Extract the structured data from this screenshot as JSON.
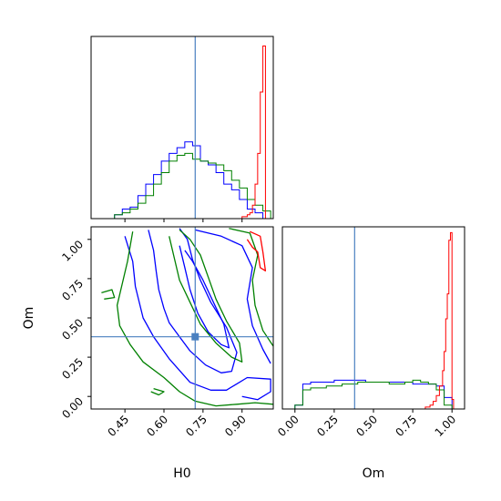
{
  "chart_data": {
    "type": "corner",
    "parameters": [
      "H0",
      "Om"
    ],
    "axis_ranges": {
      "H0": [
        0.32,
        1.02
      ],
      "Om": [
        -0.08,
        1.08
      ]
    },
    "ticks": {
      "H0": [
        0.45,
        0.6,
        0.75,
        0.9
      ],
      "H0_labels": [
        "0.45",
        "0.60",
        "0.75",
        "0.90"
      ],
      "Om": [
        0.0,
        0.25,
        0.5,
        0.75,
        1.0
      ],
      "Om_labels": [
        "0.00",
        "0.25",
        "0.50",
        "0.75",
        "1.00"
      ]
    },
    "xlabels": [
      "H0",
      "Om"
    ],
    "ylabel": "Om",
    "truth": {
      "H0": 0.72,
      "Om": 0.38
    },
    "colors": {
      "blue": "#0000ff",
      "green": "#008000",
      "red": "#ff0000",
      "truth": "#4a80c0",
      "frame": "#000000"
    },
    "hist_H0": {
      "bins": [
        0.32,
        0.35,
        0.38,
        0.41,
        0.44,
        0.47,
        0.5,
        0.53,
        0.56,
        0.59,
        0.62,
        0.65,
        0.68,
        0.71,
        0.74,
        0.77,
        0.8,
        0.83,
        0.86,
        0.89,
        0.92,
        0.95,
        0.98,
        1.01
      ],
      "series": [
        {
          "color": "blue",
          "values": [
            0.0,
            0.0,
            0.0,
            0.02,
            0.05,
            0.06,
            0.12,
            0.18,
            0.23,
            0.3,
            0.34,
            0.37,
            0.4,
            0.38,
            0.3,
            0.28,
            0.24,
            0.18,
            0.15,
            0.1,
            0.05,
            0.03,
            0.0
          ]
        },
        {
          "color": "green",
          "values": [
            0.0,
            0.0,
            0.0,
            0.02,
            0.03,
            0.05,
            0.08,
            0.12,
            0.18,
            0.24,
            0.3,
            0.33,
            0.34,
            0.31,
            0.3,
            0.29,
            0.28,
            0.25,
            0.2,
            0.16,
            0.1,
            0.07,
            0.04
          ]
        }
      ],
      "red": {
        "bins": [
          0.88,
          0.89,
          0.9,
          0.91,
          0.92,
          0.93,
          0.94,
          0.95,
          0.96,
          0.97,
          0.98,
          0.99,
          1.0
        ],
        "values": [
          0.0,
          0.0,
          0.01,
          0.01,
          0.02,
          0.03,
          0.07,
          0.18,
          0.34,
          0.66,
          0.9,
          0.0
        ]
      }
    },
    "hist_Om": {
      "bins": [
        0.0,
        0.05,
        0.1,
        0.15,
        0.2,
        0.25,
        0.3,
        0.35,
        0.4,
        0.45,
        0.5,
        0.55,
        0.6,
        0.65,
        0.7,
        0.75,
        0.8,
        0.85,
        0.9,
        0.95,
        1.0
      ],
      "series": [
        {
          "color": "blue",
          "values": [
            0.02,
            0.13,
            0.14,
            0.14,
            0.14,
            0.15,
            0.15,
            0.15,
            0.15,
            0.14,
            0.14,
            0.14,
            0.14,
            0.14,
            0.14,
            0.13,
            0.13,
            0.13,
            0.12,
            0.06
          ]
        },
        {
          "color": "green",
          "values": [
            0.02,
            0.1,
            0.11,
            0.11,
            0.12,
            0.12,
            0.13,
            0.13,
            0.14,
            0.14,
            0.14,
            0.14,
            0.13,
            0.13,
            0.14,
            0.15,
            0.14,
            0.13,
            0.1,
            0.02
          ]
        }
      ],
      "red": {
        "bins": [
          0.8,
          0.83,
          0.86,
          0.88,
          0.9,
          0.92,
          0.94,
          0.95,
          0.96,
          0.97,
          0.98,
          0.99,
          1.0,
          1.01,
          1.03
        ],
        "values": [
          0.0,
          0.01,
          0.02,
          0.04,
          0.07,
          0.12,
          0.2,
          0.3,
          0.47,
          0.6,
          0.88,
          0.92,
          0.05,
          0.0
        ]
      }
    },
    "contours": [
      {
        "color": "blue",
        "points": [
          [
            0.54,
            1.06
          ],
          [
            0.56,
            0.93
          ],
          [
            0.57,
            0.8
          ],
          [
            0.58,
            0.68
          ],
          [
            0.6,
            0.56
          ],
          [
            0.62,
            0.47
          ],
          [
            0.66,
            0.38
          ],
          [
            0.7,
            0.29
          ],
          [
            0.76,
            0.2
          ],
          [
            0.82,
            0.15
          ],
          [
            0.86,
            0.16
          ],
          [
            0.88,
            0.28
          ],
          [
            0.84,
            0.44
          ],
          [
            0.78,
            0.6
          ],
          [
            0.74,
            0.74
          ],
          [
            0.71,
            0.87
          ],
          [
            0.69,
            1.0
          ],
          [
            0.66,
            1.07
          ]
        ]
      },
      {
        "color": "blue",
        "points": [
          [
            0.66,
            0.96
          ],
          [
            0.68,
            0.82
          ],
          [
            0.7,
            0.68
          ],
          [
            0.73,
            0.53
          ],
          [
            0.77,
            0.41
          ],
          [
            0.82,
            0.33
          ],
          [
            0.85,
            0.31
          ],
          [
            0.83,
            0.46
          ],
          [
            0.79,
            0.6
          ],
          [
            0.75,
            0.74
          ],
          [
            0.71,
            0.86
          ],
          [
            0.68,
            0.93
          ]
        ]
      },
      {
        "color": "blue",
        "points": [
          [
            0.45,
            1.02
          ],
          [
            0.48,
            0.86
          ],
          [
            0.49,
            0.7
          ],
          [
            0.52,
            0.5
          ],
          [
            0.56,
            0.38
          ],
          [
            0.62,
            0.24
          ],
          [
            0.7,
            0.09
          ],
          [
            0.78,
            0.04
          ],
          [
            0.84,
            0.04
          ],
          [
            0.88,
            0.08
          ],
          [
            0.92,
            0.12
          ],
          [
            1.01,
            0.11
          ],
          [
            1.01,
            0.03
          ],
          [
            0.96,
            -0.02
          ],
          [
            0.9,
            0.0
          ]
        ]
      },
      {
        "color": "blue",
        "points": [
          [
            0.72,
            1.06
          ],
          [
            0.82,
            1.02
          ],
          [
            0.9,
            0.96
          ],
          [
            0.94,
            0.82
          ],
          [
            0.92,
            0.62
          ],
          [
            0.94,
            0.45
          ],
          [
            0.98,
            0.3
          ],
          [
            1.01,
            0.21
          ]
        ]
      },
      {
        "color": "green",
        "points": [
          [
            0.48,
            1.05
          ],
          [
            0.46,
            0.86
          ],
          [
            0.44,
            0.72
          ],
          [
            0.42,
            0.58
          ],
          [
            0.43,
            0.45
          ],
          [
            0.47,
            0.33
          ],
          [
            0.52,
            0.22
          ],
          [
            0.6,
            0.12
          ],
          [
            0.66,
            0.03
          ],
          [
            0.72,
            -0.03
          ],
          [
            0.8,
            -0.06
          ],
          [
            0.88,
            -0.05
          ],
          [
            0.95,
            -0.04
          ],
          [
            1.02,
            -0.05
          ]
        ]
      },
      {
        "color": "green",
        "points": [
          [
            0.62,
            1.02
          ],
          [
            0.64,
            0.88
          ],
          [
            0.66,
            0.74
          ],
          [
            0.7,
            0.6
          ],
          [
            0.74,
            0.46
          ],
          [
            0.8,
            0.34
          ],
          [
            0.86,
            0.25
          ],
          [
            0.9,
            0.22
          ],
          [
            0.89,
            0.34
          ],
          [
            0.84,
            0.48
          ],
          [
            0.8,
            0.62
          ],
          [
            0.77,
            0.76
          ],
          [
            0.74,
            0.9
          ],
          [
            0.7,
            1.0
          ],
          [
            0.66,
            1.06
          ]
        ]
      },
      {
        "color": "green",
        "points": [
          [
            0.85,
            1.07
          ],
          [
            0.93,
            1.04
          ],
          [
            0.96,
            0.9
          ],
          [
            0.94,
            0.74
          ],
          [
            0.95,
            0.58
          ],
          [
            0.98,
            0.42
          ],
          [
            1.02,
            0.32
          ]
        ]
      },
      {
        "color": "green",
        "points": [
          [
            0.36,
            0.66
          ],
          [
            0.4,
            0.68
          ],
          [
            0.41,
            0.63
          ],
          [
            0.37,
            0.62
          ]
        ]
      },
      {
        "color": "green",
        "points": [
          [
            0.56,
            0.05
          ],
          [
            0.6,
            0.03
          ],
          [
            0.58,
            0.01
          ],
          [
            0.55,
            0.03
          ]
        ]
      },
      {
        "color": "red",
        "points": [
          [
            0.93,
            1.05
          ],
          [
            0.97,
            1.02
          ],
          [
            0.98,
            0.92
          ],
          [
            0.99,
            0.8
          ],
          [
            0.97,
            0.82
          ],
          [
            0.96,
            0.92
          ],
          [
            0.94,
            0.95
          ],
          [
            0.92,
            1.0
          ]
        ]
      }
    ]
  }
}
